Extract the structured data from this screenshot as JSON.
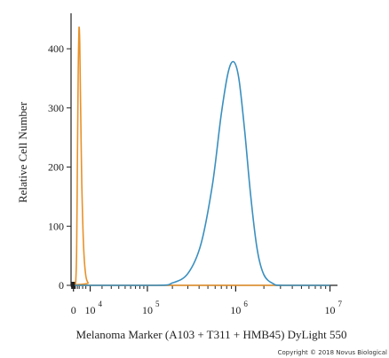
{
  "chart_data": {
    "type": "line",
    "xlabel": "Melanoma Marker (A103 + T311 + HMB45) DyLight 550",
    "ylabel": "Relative Cell Number",
    "x_scale": "biexponential",
    "x_tick_labels": [
      {
        "value": 0,
        "base": "0",
        "exp": ""
      },
      {
        "value": 10000,
        "base": "10",
        "exp": "4"
      },
      {
        "value": 100000,
        "base": "10",
        "exp": "5"
      },
      {
        "value": 1000000,
        "base": "10",
        "exp": "6"
      },
      {
        "value": 10000000,
        "base": "10",
        "exp": "7"
      }
    ],
    "y_ticks": [
      "0",
      "100",
      "200",
      "300",
      "400"
    ],
    "ylim": [
      0,
      460
    ],
    "grid": false,
    "series": [
      {
        "color": "#e8922a",
        "peak_x": 3000,
        "peak_y": 435,
        "points": [
          [
            -300,
            0
          ],
          [
            800,
            2
          ],
          [
            1200,
            10
          ],
          [
            1600,
            60
          ],
          [
            2000,
            200
          ],
          [
            2400,
            350
          ],
          [
            2800,
            425
          ],
          [
            3000,
            435
          ],
          [
            3300,
            410
          ],
          [
            3800,
            300
          ],
          [
            4500,
            170
          ],
          [
            5500,
            70
          ],
          [
            6800,
            20
          ],
          [
            8500,
            4
          ],
          [
            11000,
            0
          ],
          [
            10000000,
            0
          ]
        ]
      },
      {
        "color": "#3a8fbf",
        "peak_x": 950000,
        "peak_y": 378,
        "points": [
          [
            -300,
            0
          ],
          [
            130000,
            0
          ],
          [
            200000,
            4
          ],
          [
            300000,
            20
          ],
          [
            420000,
            70
          ],
          [
            560000,
            170
          ],
          [
            700000,
            290
          ],
          [
            830000,
            360
          ],
          [
            950000,
            378
          ],
          [
            1080000,
            350
          ],
          [
            1250000,
            260
          ],
          [
            1450000,
            150
          ],
          [
            1700000,
            60
          ],
          [
            2000000,
            18
          ],
          [
            2500000,
            3
          ],
          [
            3200000,
            0
          ],
          [
            10000000,
            0
          ]
        ]
      }
    ]
  },
  "copyright": "Copyright © 2018 Novus Biological"
}
